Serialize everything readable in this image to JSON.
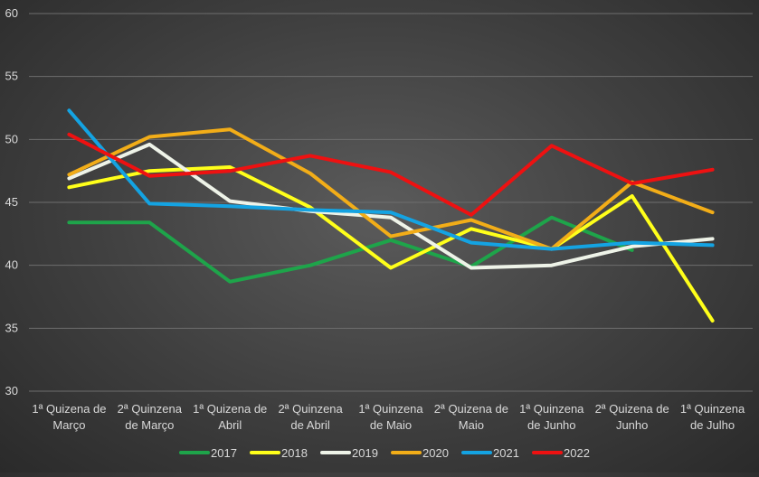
{
  "chart_data": {
    "type": "line",
    "title": "",
    "xlabel": "",
    "ylabel": "",
    "ylim": [
      30,
      60
    ],
    "yticks": [
      "30",
      "35",
      "40",
      "45",
      "50",
      "55",
      "60"
    ],
    "grid": true,
    "legend_position": "bottom",
    "categories": [
      [
        "1ª Quizena de",
        "Março"
      ],
      [
        "2ª Quinzena",
        "de Março"
      ],
      [
        "1ª Quizena de",
        "Abril"
      ],
      [
        "2ª Quinzena",
        "de Abril"
      ],
      [
        "1ª Quinzena",
        "de Maio"
      ],
      [
        "2ª Quizena de",
        "Maio"
      ],
      [
        "1ª Quinzena",
        "de Junho"
      ],
      [
        "2ª Quizena de",
        "Junho"
      ],
      [
        "1ª Quinzena",
        "de Julho"
      ]
    ],
    "series": [
      {
        "name": "2017",
        "color": "#1ea44a",
        "values": [
          43.4,
          43.4,
          38.7,
          40.0,
          42.0,
          39.9,
          43.8,
          41.2,
          null
        ]
      },
      {
        "name": "2018",
        "color": "#ffff1a",
        "values": [
          46.2,
          47.5,
          47.8,
          44.6,
          39.8,
          42.9,
          41.3,
          45.5,
          35.6
        ]
      },
      {
        "name": "2019",
        "color": "#eef3e8",
        "values": [
          46.9,
          49.6,
          45.1,
          44.3,
          43.8,
          39.8,
          40.0,
          41.5,
          42.1
        ]
      },
      {
        "name": "2020",
        "color": "#f2ad18",
        "values": [
          47.2,
          50.2,
          50.8,
          47.3,
          42.3,
          43.6,
          41.3,
          46.6,
          44.2
        ]
      },
      {
        "name": "2021",
        "color": "#14a3e2",
        "values": [
          52.3,
          44.9,
          44.7,
          44.4,
          44.2,
          41.8,
          41.3,
          41.8,
          41.6
        ]
      },
      {
        "name": "2022",
        "color": "#ee1111",
        "values": [
          50.4,
          47.1,
          47.5,
          48.7,
          47.4,
          44.0,
          49.5,
          46.5,
          47.6
        ]
      }
    ]
  }
}
